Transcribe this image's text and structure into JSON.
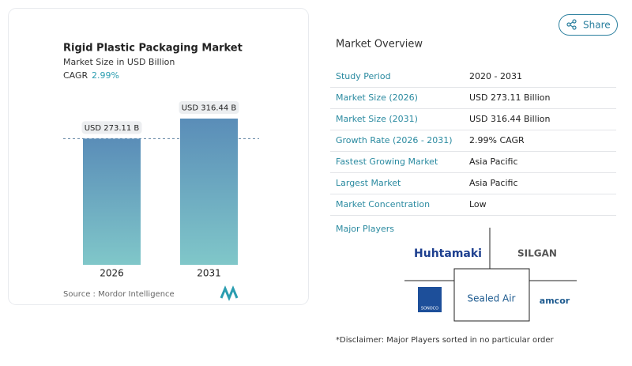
{
  "chart_data": {
    "type": "bar",
    "title": "Rigid Plastic Packaging Market",
    "subtitle": "Market Size in USD Billion",
    "cagr_label": "CAGR",
    "cagr": "2.99%",
    "categories": [
      "2026",
      "2031"
    ],
    "values": [
      273.11,
      316.44
    ],
    "value_labels": [
      "USD 273.11 B",
      "USD 316.44 B"
    ],
    "colors": [
      "#5a8db8",
      "#80c7c9"
    ],
    "source": "Source : Mordor Intelligence"
  },
  "share": "Share",
  "overview": {
    "title": "Market Overview",
    "rows": [
      [
        "Study Period",
        "2020 - 2031"
      ],
      [
        "Market Size (2026)",
        "USD 273.11 Billion"
      ],
      [
        "Market Size (2031)",
        "USD 316.44 Billion"
      ],
      [
        "Growth Rate (2026 - 2031)",
        "2.99% CAGR"
      ],
      [
        "Fastest Growing Market",
        "Asia Pacific"
      ],
      [
        "Largest Market",
        "Asia Pacific"
      ],
      [
        "Market Concentration",
        "Low"
      ]
    ]
  },
  "players": {
    "title": "Major Players",
    "names": [
      "Huhtamaki",
      "SILGAN",
      "SONOCO",
      "Sealed Air",
      "amcor"
    ]
  },
  "disclaimer": "*Disclaimer: Major Players sorted in no particular order"
}
